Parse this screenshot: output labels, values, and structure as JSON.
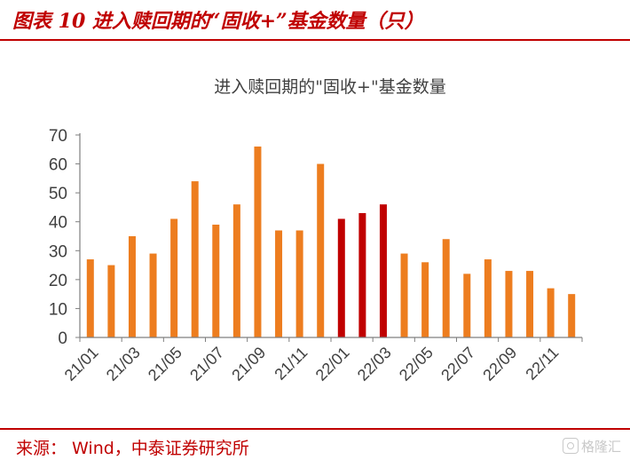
{
  "figure": {
    "title": "图表 10 进入赎回期的“固收+”基金数量（只）",
    "source": "来源：  Wind，中泰证券研究所",
    "watermark": "格隆汇"
  },
  "colors": {
    "orange": "#ED7D1F",
    "red": "#C00000",
    "axis": "#7f7f7f",
    "text": "#404040"
  },
  "chart_data": {
    "type": "bar",
    "title": "进入赎回期的\"固收+\"基金数量",
    "xlabel": "",
    "ylabel": "",
    "ylim": [
      0,
      70
    ],
    "yticks": [
      0,
      10,
      20,
      30,
      40,
      50,
      60,
      70
    ],
    "grid": false,
    "legend": "none",
    "categories": [
      "21/01",
      "21/02",
      "21/03",
      "21/04",
      "21/05",
      "21/06",
      "21/07",
      "21/08",
      "21/09",
      "21/10",
      "21/11",
      "21/12",
      "22/01",
      "22/02",
      "22/03",
      "22/04",
      "22/05",
      "22/06",
      "22/07",
      "22/08",
      "22/09",
      "22/10",
      "22/11",
      "22/12"
    ],
    "tick_labels": [
      "21/01",
      "21/03",
      "21/05",
      "21/07",
      "21/09",
      "21/11",
      "22/01",
      "22/03",
      "22/05",
      "22/07",
      "22/09",
      "22/11"
    ],
    "values": [
      27,
      25,
      35,
      29,
      41,
      54,
      39,
      46,
      66,
      37,
      37,
      60,
      41,
      43,
      46,
      29,
      26,
      34,
      22,
      27,
      23,
      23,
      17,
      15
    ],
    "highlight_categories": [
      "22/01",
      "22/02",
      "22/03"
    ]
  }
}
